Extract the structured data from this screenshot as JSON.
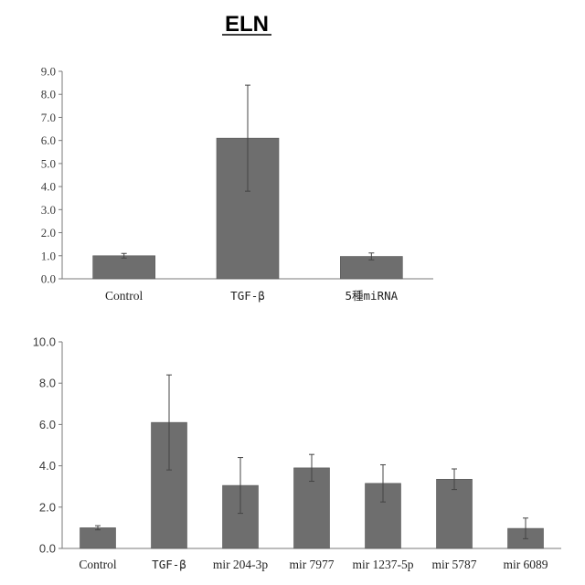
{
  "title": "ELN",
  "chart_data": [
    {
      "type": "bar",
      "categories": [
        "Control",
        "TGF-β",
        "5種miRNA"
      ],
      "values": [
        1.0,
        6.1,
        0.97
      ],
      "error": [
        0.1,
        2.3,
        0.15
      ],
      "ylim": [
        0,
        9
      ],
      "yticks": [
        "0.0",
        "1.0",
        "2.0",
        "3.0",
        "4.0",
        "5.0",
        "6.0",
        "7.0",
        "8.0",
        "9.0"
      ],
      "bar_color": "#6e6e6e",
      "grid": false
    },
    {
      "type": "bar",
      "categories": [
        "Control",
        "TGF-β",
        "mir 204-3p",
        "mir 7977",
        "mir 1237-5p",
        "mir 5787",
        "mir 6089"
      ],
      "values": [
        1.0,
        6.1,
        3.05,
        3.9,
        3.15,
        3.35,
        0.97
      ],
      "error": [
        0.1,
        2.3,
        1.35,
        0.65,
        0.9,
        0.5,
        0.5
      ],
      "ylim": [
        0,
        10
      ],
      "yticks": [
        "0.0",
        "2.0",
        "4.0",
        "6.0",
        "8.0",
        "10.0"
      ],
      "bar_color": "#6e6e6e",
      "grid": false
    }
  ]
}
